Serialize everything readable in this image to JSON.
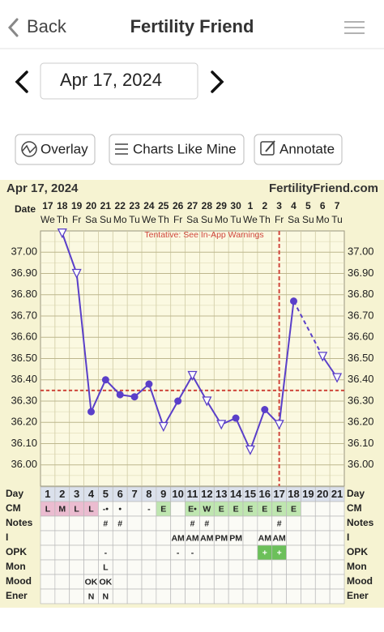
{
  "header": {
    "back": "Back",
    "title": "Fertility Friend"
  },
  "date_nav": {
    "date": "Apr 17, 2024"
  },
  "toolbar": {
    "buttons": [
      "Overlay",
      "Charts Like Mine",
      "Annotate"
    ]
  },
  "chart_data": {
    "type": "line",
    "title": "Apr 17, 2024",
    "site": "FertilityFriend.com",
    "x_label": "Date",
    "categories": [
      "17",
      "18",
      "19",
      "20",
      "21",
      "22",
      "23",
      "24",
      "25",
      "26",
      "27",
      "28",
      "29",
      "30",
      "1",
      "2",
      "3",
      "4",
      "5",
      "6",
      "7"
    ],
    "weekdays": [
      "We",
      "Th",
      "Fr",
      "Sa",
      "Su",
      "Mo",
      "Tu",
      "We",
      "Th",
      "Fr",
      "Sa",
      "Su",
      "Mo",
      "Tu",
      "We",
      "Th",
      "Fr",
      "Sa",
      "Su",
      "Mo",
      "Tu"
    ],
    "values": [
      null,
      37.09,
      36.9,
      36.25,
      36.4,
      36.33,
      36.32,
      36.38,
      36.18,
      36.3,
      36.42,
      36.3,
      36.19,
      36.22,
      36.07,
      36.26,
      36.19,
      36.77,
      null,
      36.51,
      36.41
    ],
    "markers": [
      null,
      "triangle",
      "triangle",
      "dot",
      "dot",
      "dot",
      "dot",
      "dot",
      "triangle",
      "dot",
      "triangle",
      "triangle",
      "triangle",
      "dot",
      "triangle",
      "dot",
      "triangle",
      "dot",
      null,
      "triangle",
      "triangle"
    ],
    "color": "#5a3fc9",
    "ylim": [
      35.9,
      37.1
    ],
    "yticks": [
      {
        "value": 36.0,
        "label": "36.00"
      },
      {
        "value": 36.1,
        "label": "36.10"
      },
      {
        "value": 36.2,
        "label": "36.20"
      },
      {
        "value": 36.3,
        "label": "36.30"
      },
      {
        "value": 36.4,
        "label": "36.40"
      },
      {
        "value": 36.5,
        "label": "36.50"
      },
      {
        "value": 36.6,
        "label": "36.60"
      },
      {
        "value": 36.7,
        "label": "36.70"
      },
      {
        "value": 36.8,
        "label": "36.80"
      },
      {
        "value": 36.9,
        "label": "36.90"
      },
      {
        "value": 37.0,
        "label": "37.00"
      }
    ],
    "grid": true,
    "coverline": 36.35,
    "coverline_color": "#d0463c",
    "ovulation_index": 16,
    "annotation": "Tentative: See In-App Warnings"
  },
  "table": {
    "row_labels": [
      "Day",
      "CM",
      "Notes",
      "I",
      "OPK",
      "Mon",
      "Mood",
      "Ener"
    ],
    "rows": [
      [
        "1",
        "2",
        "3",
        "4",
        "5",
        "6",
        "7",
        "8",
        "9",
        "10",
        "11",
        "12",
        "13",
        "14",
        "15",
        "16",
        "17",
        "18",
        "19",
        "20",
        "21"
      ],
      [
        "L",
        "M",
        "L",
        "L",
        "-•",
        "•",
        null,
        "-",
        "E",
        null,
        "E•",
        "W",
        "E",
        "E",
        "E",
        "E",
        "E",
        "E",
        null,
        null,
        null
      ],
      [
        null,
        null,
        null,
        null,
        "#",
        "#",
        null,
        null,
        null,
        null,
        "#",
        "#",
        null,
        null,
        null,
        null,
        "#",
        null,
        null,
        null,
        null
      ],
      [
        null,
        null,
        null,
        null,
        null,
        null,
        null,
        null,
        null,
        "AM",
        "AM",
        "AM",
        "PM",
        "PM",
        null,
        "AM",
        "AM",
        null,
        null,
        null,
        null
      ],
      [
        null,
        null,
        null,
        null,
        "-",
        null,
        null,
        null,
        null,
        "-",
        "-",
        null,
        null,
        null,
        null,
        "+",
        "+",
        null,
        null,
        null,
        null
      ],
      [
        null,
        null,
        null,
        null,
        "L",
        null,
        null,
        null,
        null,
        null,
        null,
        null,
        null,
        null,
        null,
        null,
        null,
        null,
        null,
        null,
        null
      ],
      [
        null,
        null,
        null,
        "OK",
        "OK",
        null,
        null,
        null,
        null,
        null,
        null,
        null,
        null,
        null,
        null,
        null,
        null,
        null,
        null,
        null,
        null
      ],
      [
        null,
        null,
        null,
        "N",
        "N",
        null,
        null,
        null,
        null,
        null,
        null,
        null,
        null,
        null,
        null,
        null,
        null,
        null,
        null,
        null,
        null
      ]
    ],
    "row_highlights": [
      null,
      {
        "L": "#ebbcd0",
        "M": "#ebbcd0",
        "E": "#bfe6b0",
        "W": "#bfe6b0",
        "E•": "#bfe6b0"
      },
      null,
      null,
      {
        "+": "#6cc05a"
      },
      null,
      null,
      null
    ]
  }
}
